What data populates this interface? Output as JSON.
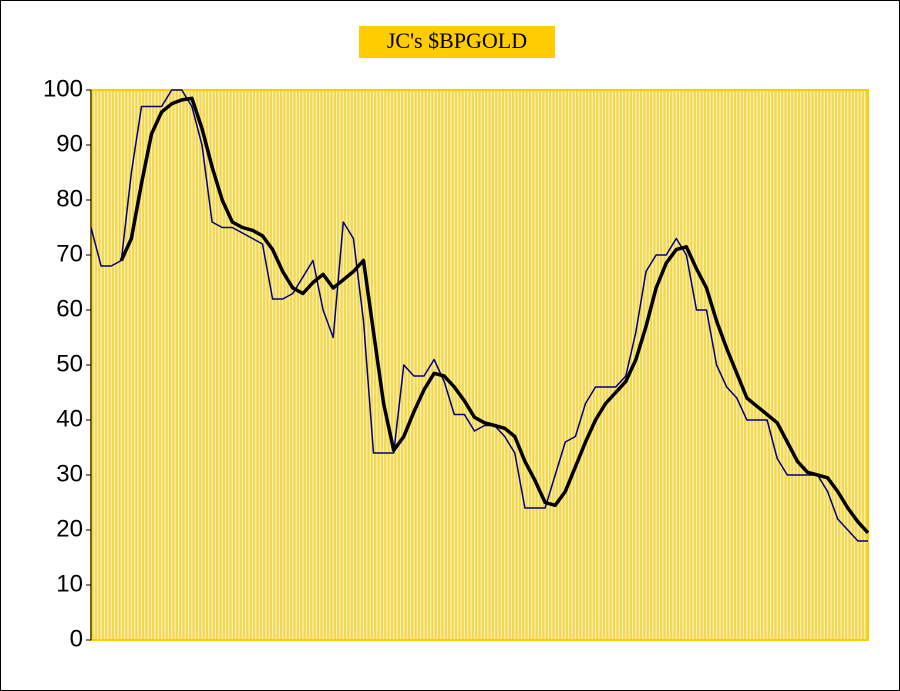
{
  "chart_data": {
    "type": "line",
    "title": "JC's $BPGOLD",
    "ylim": [
      0,
      100
    ],
    "yticks": [
      0,
      10,
      20,
      30,
      40,
      50,
      60,
      70,
      80,
      90,
      100
    ],
    "grid": true,
    "series": [
      {
        "color": "#000080",
        "width": 1.5,
        "values": [
          75,
          68,
          68,
          69,
          85,
          97,
          97,
          97,
          100,
          100,
          97,
          90,
          76,
          75,
          75,
          74,
          73,
          72,
          62,
          62,
          63,
          66,
          69,
          60,
          55,
          76,
          73,
          58,
          34,
          34,
          34,
          50,
          48,
          48,
          51,
          47,
          41,
          41,
          38,
          39,
          39,
          37,
          34,
          24,
          24,
          24,
          30,
          36,
          37,
          43,
          46,
          46,
          46,
          48,
          56,
          67,
          70,
          70,
          73,
          70,
          60,
          60,
          50,
          46,
          44,
          40,
          40,
          40,
          33,
          30,
          30,
          30,
          30,
          27,
          22,
          20,
          18,
          18
        ]
      },
      {
        "color": "#000000",
        "width": 3.5,
        "values": [
          null,
          null,
          null,
          69,
          73,
          83,
          92,
          96,
          97.5,
          98.2,
          98.5,
          93,
          86,
          80,
          76,
          75,
          74.5,
          73.5,
          71,
          67,
          64,
          63,
          65,
          66.5,
          64,
          65.5,
          67,
          69,
          56,
          43,
          34.5,
          37,
          41.5,
          45.5,
          48.5,
          48,
          46,
          43.5,
          40.5,
          39.5,
          39,
          38.5,
          37,
          32.5,
          29,
          25,
          24.5,
          27,
          31.5,
          36,
          40,
          43,
          45,
          47,
          51,
          57,
          64,
          68.5,
          71,
          71.5,
          67.5,
          64,
          58,
          53,
          48.5,
          44,
          42.5,
          41,
          39.5,
          36,
          32.5,
          30.5,
          30,
          29.5,
          27,
          24,
          21.5,
          19.5
        ]
      }
    ]
  }
}
